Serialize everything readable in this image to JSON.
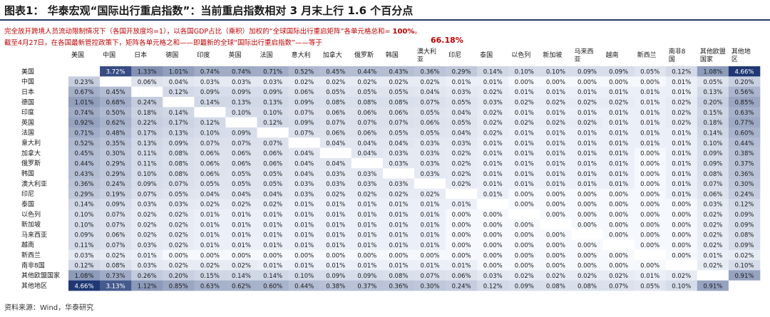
{
  "title": "图表1：  华泰宏观“国际出行重启指数”：当前重启指数相对 3 月末上行 1.6 个百分点",
  "notes": {
    "line1": "完全放开跨境人员流动限制情况下（各国开放度均=1），以各国GDP占比（乘积）加权的“全球国际出行重启矩阵”各单元格总和= ",
    "line1_value": "100%",
    "line1_end": "。",
    "line2": "截至4月27日，在各国最新管控政策下，矩阵各单元格之和——即最新的全球“国际出行重启指数”——等于",
    "line2_value": "66.18%"
  },
  "source": "资料来源：Wind，华泰研究",
  "chart_data": {
    "type": "heatmap",
    "countries": [
      "美国",
      "中国",
      "日本",
      "德国",
      "印度",
      "英国",
      "法国",
      "意大利",
      "加拿大",
      "俄罗斯",
      "韩国",
      "澳大利亚",
      "印尼",
      "泰国",
      "以色列",
      "新加坡",
      "马来西亚",
      "越南",
      "新西兰",
      "南非8国",
      "其他欧盟国家",
      "其他地区"
    ],
    "row_labels": [
      "美国",
      "中国",
      "日本",
      "德国",
      "印度",
      "英国",
      "法国",
      "意大利",
      "加拿大",
      "俄罗斯",
      "韩国",
      "澳大利亚",
      "印尼",
      "泰国",
      "以色列",
      "新加坡",
      "马来西亚",
      "越南",
      "新西兰",
      "南非8国",
      "其他欧盟国家",
      "其他地区"
    ],
    "col_labels": [
      "美国",
      "中国",
      "日本",
      "德国",
      "印度",
      "英国",
      "法国",
      "意大利",
      "加拿大",
      "俄罗斯",
      "韩国",
      "澳大利亚",
      "印尼",
      "泰国",
      "以色列",
      "新加坡",
      "马来西亚",
      "越南",
      "新西兰",
      "南非8国",
      "其他欧盟国家",
      "其他地区"
    ],
    "values": [
      [
        "",
        "3.72%",
        "1.33%",
        "1.01%",
        "0.74%",
        "0.74%",
        "0.71%",
        "0.52%",
        "0.45%",
        "0.44%",
        "0.43%",
        "0.36%",
        "0.29%",
        "0.14%",
        "0.10%",
        "0.10%",
        "0.09%",
        "0.09%",
        "0.05%",
        "0.12%",
        "1.08%",
        "4.66%"
      ],
      [
        "0.23%",
        "",
        "0.06%",
        "0.04%",
        "0.03%",
        "0.03%",
        "0.03%",
        "0.02%",
        "0.02%",
        "0.02%",
        "0.02%",
        "0.02%",
        "0.01%",
        "0.01%",
        "0.00%",
        "0.00%",
        "0.00%",
        "0.00%",
        "0.00%",
        "0.01%",
        "0.05%",
        "0.20%"
      ],
      [
        "0.67%",
        "0.45%",
        "",
        "0.12%",
        "0.09%",
        "0.09%",
        "0.09%",
        "0.06%",
        "0.05%",
        "0.05%",
        "0.05%",
        "0.04%",
        "0.03%",
        "0.02%",
        "0.01%",
        "0.01%",
        "0.01%",
        "0.01%",
        "0.01%",
        "0.01%",
        "0.13%",
        "0.56%"
      ],
      [
        "1.01%",
        "0.68%",
        "0.24%",
        "",
        "0.14%",
        "0.13%",
        "0.13%",
        "0.09%",
        "0.08%",
        "0.08%",
        "0.08%",
        "0.07%",
        "0.05%",
        "0.03%",
        "0.02%",
        "0.02%",
        "0.02%",
        "0.02%",
        "0.01%",
        "0.02%",
        "0.20%",
        "0.85%"
      ],
      [
        "0.74%",
        "0.50%",
        "0.18%",
        "0.14%",
        "",
        "0.10%",
        "0.10%",
        "0.07%",
        "0.06%",
        "0.06%",
        "0.06%",
        "0.05%",
        "0.04%",
        "0.02%",
        "0.01%",
        "0.01%",
        "0.01%",
        "0.01%",
        "0.01%",
        "0.02%",
        "0.15%",
        "0.63%"
      ],
      [
        "0.92%",
        "0.62%",
        "0.22%",
        "0.17%",
        "0.12%",
        "",
        "0.12%",
        "0.09%",
        "0.07%",
        "0.07%",
        "0.07%",
        "0.06%",
        "0.05%",
        "0.02%",
        "0.02%",
        "0.02%",
        "0.02%",
        "0.01%",
        "0.01%",
        "0.02%",
        "0.18%",
        "0.77%"
      ],
      [
        "0.71%",
        "0.48%",
        "0.17%",
        "0.13%",
        "0.10%",
        "0.09%",
        "",
        "0.07%",
        "0.06%",
        "0.06%",
        "0.05%",
        "0.05%",
        "0.04%",
        "0.02%",
        "0.01%",
        "0.01%",
        "0.01%",
        "0.01%",
        "0.01%",
        "0.01%",
        "0.14%",
        "0.60%"
      ],
      [
        "0.52%",
        "0.35%",
        "0.13%",
        "0.09%",
        "0.07%",
        "0.07%",
        "0.07%",
        "",
        "0.04%",
        "0.04%",
        "0.04%",
        "0.03%",
        "0.03%",
        "0.01%",
        "0.01%",
        "0.01%",
        "0.01%",
        "0.01%",
        "0.01%",
        "0.01%",
        "0.10%",
        "0.44%"
      ],
      [
        "0.45%",
        "0.30%",
        "0.11%",
        "0.08%",
        "0.06%",
        "0.06%",
        "0.06%",
        "0.04%",
        "",
        "0.04%",
        "0.03%",
        "0.03%",
        "0.02%",
        "0.01%",
        "0.01%",
        "0.01%",
        "0.01%",
        "0.01%",
        "0.00%",
        "0.01%",
        "0.09%",
        "0.38%"
      ],
      [
        "0.44%",
        "0.29%",
        "0.11%",
        "0.08%",
        "0.06%",
        "0.06%",
        "0.06%",
        "0.04%",
        "0.04%",
        "",
        "0.03%",
        "0.03%",
        "0.02%",
        "0.01%",
        "0.01%",
        "0.01%",
        "0.01%",
        "0.01%",
        "0.00%",
        "0.01%",
        "0.09%",
        "0.37%"
      ],
      [
        "0.43%",
        "0.29%",
        "0.10%",
        "0.08%",
        "0.06%",
        "0.05%",
        "0.05%",
        "0.04%",
        "0.03%",
        "0.03%",
        "",
        "0.03%",
        "0.02%",
        "0.01%",
        "0.01%",
        "0.01%",
        "0.01%",
        "0.01%",
        "0.00%",
        "0.01%",
        "0.08%",
        "0.36%"
      ],
      [
        "0.36%",
        "0.24%",
        "0.09%",
        "0.07%",
        "0.05%",
        "0.05%",
        "0.05%",
        "0.03%",
        "0.03%",
        "0.03%",
        "0.03%",
        "",
        "0.02%",
        "0.01%",
        "0.01%",
        "0.01%",
        "0.01%",
        "0.01%",
        "0.00%",
        "0.01%",
        "0.07%",
        "0.30%"
      ],
      [
        "0.29%",
        "0.19%",
        "0.07%",
        "0.05%",
        "0.04%",
        "0.04%",
        "0.04%",
        "0.03%",
        "0.02%",
        "0.02%",
        "0.02%",
        "0.02%",
        "",
        "0.01%",
        "0.00%",
        "0.00%",
        "0.00%",
        "0.00%",
        "0.00%",
        "0.01%",
        "0.06%",
        "0.24%"
      ],
      [
        "0.14%",
        "0.09%",
        "0.03%",
        "0.03%",
        "0.02%",
        "0.02%",
        "0.02%",
        "0.01%",
        "0.01%",
        "0.01%",
        "0.01%",
        "0.01%",
        "0.01%",
        "",
        "0.00%",
        "0.00%",
        "0.00%",
        "0.00%",
        "0.00%",
        "0.00%",
        "0.03%",
        "0.12%"
      ],
      [
        "0.10%",
        "0.07%",
        "0.02%",
        "0.02%",
        "0.01%",
        "0.01%",
        "0.01%",
        "0.01%",
        "0.01%",
        "0.01%",
        "0.01%",
        "0.01%",
        "0.00%",
        "0.00%",
        "",
        "0.00%",
        "0.00%",
        "0.00%",
        "0.00%",
        "0.00%",
        "0.02%",
        "0.09%"
      ],
      [
        "0.10%",
        "0.07%",
        "0.02%",
        "0.02%",
        "0.01%",
        "0.01%",
        "0.01%",
        "0.01%",
        "0.01%",
        "0.01%",
        "0.01%",
        "0.01%",
        "0.00%",
        "0.00%",
        "0.00%",
        "",
        "0.00%",
        "0.00%",
        "0.00%",
        "0.00%",
        "0.02%",
        "0.09%"
      ],
      [
        "0.09%",
        "0.06%",
        "0.02%",
        "0.02%",
        "0.01%",
        "0.01%",
        "0.01%",
        "0.01%",
        "0.01%",
        "0.01%",
        "0.01%",
        "0.01%",
        "0.00%",
        "0.00%",
        "0.00%",
        "0.00%",
        "",
        "0.00%",
        "0.00%",
        "0.00%",
        "0.02%",
        "0.08%"
      ],
      [
        "0.11%",
        "0.07%",
        "0.03%",
        "0.02%",
        "0.01%",
        "0.01%",
        "0.01%",
        "0.01%",
        "0.01%",
        "0.01%",
        "0.01%",
        "0.01%",
        "0.00%",
        "0.00%",
        "0.00%",
        "0.00%",
        "0.00%",
        "",
        "0.00%",
        "0.00%",
        "0.02%",
        "0.09%"
      ],
      [
        "0.03%",
        "0.02%",
        "0.01%",
        "0.00%",
        "0.00%",
        "0.00%",
        "0.00%",
        "0.00%",
        "0.00%",
        "0.00%",
        "0.00%",
        "0.00%",
        "0.00%",
        "0.00%",
        "0.00%",
        "0.00%",
        "0.00%",
        "0.00%",
        "",
        "0.00%",
        "0.01%",
        "0.02%"
      ],
      [
        "0.12%",
        "0.08%",
        "0.03%",
        "0.02%",
        "0.02%",
        "0.02%",
        "0.01%",
        "0.01%",
        "0.01%",
        "0.01%",
        "0.01%",
        "0.01%",
        "0.01%",
        "0.00%",
        "0.00%",
        "0.00%",
        "0.00%",
        "0.00%",
        "0.00%",
        "",
        "0.02%",
        "0.10%"
      ],
      [
        "1.08%",
        "0.73%",
        "0.26%",
        "0.20%",
        "0.15%",
        "0.14%",
        "0.14%",
        "0.10%",
        "0.09%",
        "0.09%",
        "0.08%",
        "0.07%",
        "0.06%",
        "0.03%",
        "0.02%",
        "0.02%",
        "0.02%",
        "0.02%",
        "0.01%",
        "0.02%",
        "",
        "0.91%"
      ],
      [
        "4.66%",
        "3.13%",
        "1.12%",
        "0.85%",
        "0.63%",
        "0.62%",
        "0.60%",
        "0.44%",
        "0.38%",
        "0.37%",
        "0.36%",
        "0.30%",
        "0.24%",
        "0.12%",
        "0.09%",
        "0.08%",
        "0.08%",
        "0.07%",
        "0.05%",
        "0.10%",
        "0.91%",
        ""
      ]
    ],
    "colors": {
      "low": "#f5f8fd",
      "high": "#1f3874",
      "text_dark": "#1a1a1a",
      "text_light": "#ffffff"
    }
  }
}
